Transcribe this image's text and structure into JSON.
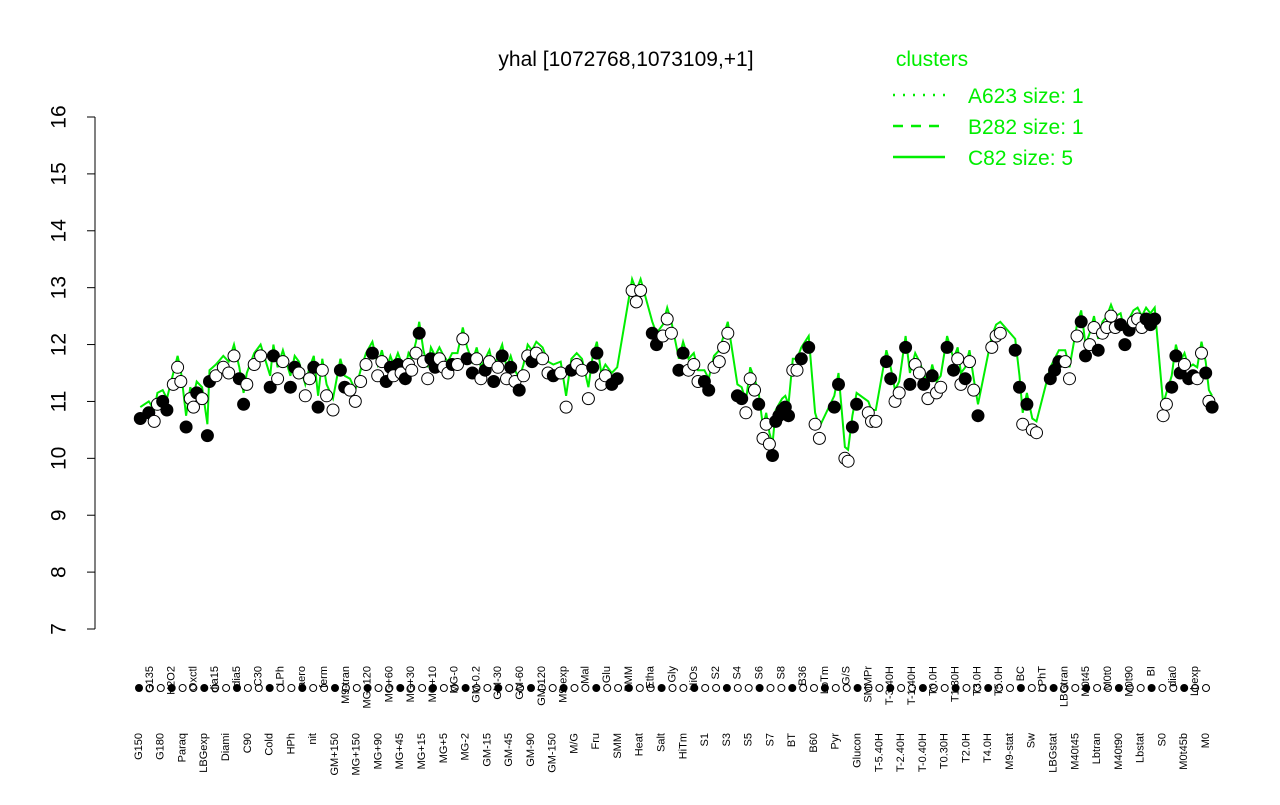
{
  "chart_data": {
    "type": "scatter",
    "title": "yhal [1072768,1073109,+1]",
    "xlabel": "",
    "ylabel": "",
    "ylim": [
      7,
      16
    ],
    "yticks": [
      7,
      8,
      9,
      10,
      11,
      12,
      13,
      14,
      15,
      16
    ],
    "legend": {
      "title": "clusters",
      "placement": "top-right",
      "color": "#00ee00",
      "entries": [
        {
          "label": "A623 size: 1",
          "line": "dotted"
        },
        {
          "label": "B282 size: 1",
          "line": "dashed"
        },
        {
          "label": "C82 size: 5",
          "line": "solid"
        }
      ]
    },
    "x_tick_labels": [
      "G150",
      "G135",
      "G180",
      "H2O2",
      "Paraq",
      "Oxctl",
      "LBGexp",
      "dia15",
      "Diami",
      "dia5",
      "C90",
      "C30",
      "Cold",
      "LPh",
      "HPh",
      "aero",
      "nit",
      "ferm",
      "GM+150",
      "M9-tran",
      "MG+150",
      "MG+120",
      "MG+90",
      "MG+60",
      "MG+45",
      "MG+30",
      "MG+15",
      "MG+10",
      "MG+5",
      "MG-0",
      "MG-2",
      "GM-0.2",
      "GM-15",
      "GM-30",
      "GM-45",
      "GM-60",
      "GM-90",
      "GM-120",
      "GM-150",
      "M9-exp",
      "M/G",
      "Mal",
      "Fru",
      "Glu",
      "SMM",
      "BMM",
      "Heat",
      "Etha",
      "Salt",
      "Gly",
      "HiTm",
      "HiOs",
      "S1",
      "S2",
      "S3",
      "S4",
      "S5",
      "S6",
      "S7",
      "S8",
      "BT",
      "B36",
      "B60",
      "LoTm",
      "Pyr",
      "G/S",
      "Glucon",
      "SMMPr",
      "T-5.40H",
      "T-3.40H",
      "T-2.40H",
      "T-1.40H",
      "T-0.40H",
      "T0.0H",
      "T0.30H",
      "T1.30H",
      "T2.0H",
      "T3.0H",
      "T4.0H",
      "T5.0H",
      "M9-stat",
      "BC",
      "Sw",
      "LPhT",
      "LBGstat",
      "LBGtran",
      "M40t45",
      "M0t45",
      "Lbtran",
      "M0t0",
      "M40t90",
      "M0t90",
      "Lbstat",
      "BI",
      "S0",
      "dia0",
      "M0t45b",
      "Lbexp",
      "M0"
    ],
    "points": [
      {
        "x": 0.5,
        "y": 10.7,
        "filled": true
      },
      {
        "x": 1.3,
        "y": 10.8,
        "filled": true
      },
      {
        "x": 1.8,
        "y": 10.65,
        "filled": false
      },
      {
        "x": 2.1,
        "y": 10.95,
        "filled": false
      },
      {
        "x": 2.6,
        "y": 11.0,
        "filled": true
      },
      {
        "x": 3.0,
        "y": 10.85,
        "filled": true
      },
      {
        "x": 3.6,
        "y": 11.3,
        "filled": false
      },
      {
        "x": 4.0,
        "y": 11.6,
        "filled": false
      },
      {
        "x": 4.3,
        "y": 11.35,
        "filled": false
      },
      {
        "x": 4.8,
        "y": 10.55,
        "filled": true
      },
      {
        "x": 5.2,
        "y": 11.05,
        "filled": false
      },
      {
        "x": 5.5,
        "y": 10.9,
        "filled": false
      },
      {
        "x": 5.8,
        "y": 11.15,
        "filled": true
      },
      {
        "x": 6.3,
        "y": 11.05,
        "filled": false
      },
      {
        "x": 6.8,
        "y": 10.4,
        "filled": true
      },
      {
        "x": 7.0,
        "y": 11.35,
        "filled": true
      },
      {
        "x": 7.6,
        "y": 11.45,
        "filled": false
      },
      {
        "x": 8.3,
        "y": 11.6,
        "filled": false
      },
      {
        "x": 8.8,
        "y": 11.5,
        "filled": false
      },
      {
        "x": 9.3,
        "y": 11.8,
        "filled": false
      },
      {
        "x": 9.8,
        "y": 11.4,
        "filled": true
      },
      {
        "x": 10.2,
        "y": 10.95,
        "filled": true
      },
      {
        "x": 10.5,
        "y": 11.3,
        "filled": false
      },
      {
        "x": 11.2,
        "y": 11.65,
        "filled": false
      },
      {
        "x": 11.8,
        "y": 11.8,
        "filled": false
      },
      {
        "x": 12.7,
        "y": 11.25,
        "filled": true
      },
      {
        "x": 13.0,
        "y": 11.8,
        "filled": true
      },
      {
        "x": 13.4,
        "y": 11.4,
        "filled": false
      },
      {
        "x": 13.9,
        "y": 11.7,
        "filled": false
      },
      {
        "x": 14.6,
        "y": 11.25,
        "filled": true
      },
      {
        "x": 15.0,
        "y": 11.6,
        "filled": true
      },
      {
        "x": 15.4,
        "y": 11.5,
        "filled": false
      },
      {
        "x": 16.0,
        "y": 11.1,
        "filled": false
      },
      {
        "x": 16.4,
        "y": 11.4,
        "filled": false
      },
      {
        "x": 16.8,
        "y": 11.6,
        "filled": true
      },
      {
        "x": 17.2,
        "y": 10.9,
        "filled": true
      },
      {
        "x": 17.6,
        "y": 11.55,
        "filled": false
      },
      {
        "x": 18.0,
        "y": 11.1,
        "filled": false
      },
      {
        "x": 18.6,
        "y": 10.85,
        "filled": false
      },
      {
        "x": 19.3,
        "y": 11.55,
        "filled": true
      },
      {
        "x": 19.7,
        "y": 11.25,
        "filled": true
      },
      {
        "x": 20.2,
        "y": 11.2,
        "filled": false
      },
      {
        "x": 20.7,
        "y": 11.0,
        "filled": false
      },
      {
        "x": 21.2,
        "y": 11.35,
        "filled": false
      },
      {
        "x": 21.7,
        "y": 11.65,
        "filled": false
      },
      {
        "x": 22.3,
        "y": 11.85,
        "filled": true
      },
      {
        "x": 22.8,
        "y": 11.45,
        "filled": false
      },
      {
        "x": 23.2,
        "y": 11.7,
        "filled": false
      },
      {
        "x": 23.6,
        "y": 11.35,
        "filled": true
      },
      {
        "x": 24.0,
        "y": 11.6,
        "filled": true
      },
      {
        "x": 24.3,
        "y": 11.45,
        "filled": false
      },
      {
        "x": 24.7,
        "y": 11.65,
        "filled": true
      },
      {
        "x": 25.0,
        "y": 11.5,
        "filled": false
      },
      {
        "x": 25.4,
        "y": 11.4,
        "filled": true
      },
      {
        "x": 25.7,
        "y": 11.65,
        "filled": false
      },
      {
        "x": 26.0,
        "y": 11.55,
        "filled": false
      },
      {
        "x": 26.4,
        "y": 11.85,
        "filled": false
      },
      {
        "x": 26.7,
        "y": 12.2,
        "filled": true
      },
      {
        "x": 27.1,
        "y": 11.7,
        "filled": false
      },
      {
        "x": 27.5,
        "y": 11.4,
        "filled": false
      },
      {
        "x": 27.8,
        "y": 11.75,
        "filled": true
      },
      {
        "x": 28.2,
        "y": 11.6,
        "filled": true
      },
      {
        "x": 28.6,
        "y": 11.75,
        "filled": false
      },
      {
        "x": 29.0,
        "y": 11.6,
        "filled": false
      },
      {
        "x": 29.4,
        "y": 11.5,
        "filled": false
      },
      {
        "x": 29.8,
        "y": 11.65,
        "filled": true
      },
      {
        "x": 30.3,
        "y": 11.65,
        "filled": false
      },
      {
        "x": 30.8,
        "y": 12.1,
        "filled": false
      },
      {
        "x": 31.2,
        "y": 11.75,
        "filled": true
      },
      {
        "x": 31.7,
        "y": 11.5,
        "filled": true
      },
      {
        "x": 32.1,
        "y": 11.75,
        "filled": false
      },
      {
        "x": 32.5,
        "y": 11.4,
        "filled": false
      },
      {
        "x": 32.9,
        "y": 11.55,
        "filled": true
      },
      {
        "x": 33.3,
        "y": 11.7,
        "filled": false
      },
      {
        "x": 33.7,
        "y": 11.35,
        "filled": true
      },
      {
        "x": 34.1,
        "y": 11.6,
        "filled": false
      },
      {
        "x": 34.5,
        "y": 11.8,
        "filled": true
      },
      {
        "x": 34.9,
        "y": 11.4,
        "filled": false
      },
      {
        "x": 35.3,
        "y": 11.6,
        "filled": true
      },
      {
        "x": 35.7,
        "y": 11.35,
        "filled": false
      },
      {
        "x": 36.1,
        "y": 11.2,
        "filled": true
      },
      {
        "x": 36.5,
        "y": 11.45,
        "filled": false
      },
      {
        "x": 36.9,
        "y": 11.8,
        "filled": false
      },
      {
        "x": 37.3,
        "y": 11.7,
        "filled": true
      },
      {
        "x": 37.7,
        "y": 11.85,
        "filled": false
      },
      {
        "x": 38.3,
        "y": 11.75,
        "filled": false
      },
      {
        "x": 38.8,
        "y": 11.5,
        "filled": false
      },
      {
        "x": 39.3,
        "y": 11.45,
        "filled": true
      },
      {
        "x": 40.0,
        "y": 11.5,
        "filled": false
      },
      {
        "x": 40.5,
        "y": 10.9,
        "filled": false
      },
      {
        "x": 41.0,
        "y": 11.55,
        "filled": true
      },
      {
        "x": 41.5,
        "y": 11.65,
        "filled": false
      },
      {
        "x": 42.0,
        "y": 11.55,
        "filled": false
      },
      {
        "x": 42.6,
        "y": 11.05,
        "filled": false
      },
      {
        "x": 43.0,
        "y": 11.6,
        "filled": true
      },
      {
        "x": 43.4,
        "y": 11.85,
        "filled": true
      },
      {
        "x": 43.8,
        "y": 11.3,
        "filled": false
      },
      {
        "x": 44.2,
        "y": 11.45,
        "filled": false
      },
      {
        "x": 44.8,
        "y": 11.3,
        "filled": true
      },
      {
        "x": 45.3,
        "y": 11.4,
        "filled": true
      },
      {
        "x": 46.7,
        "y": 12.95,
        "filled": false
      },
      {
        "x": 47.1,
        "y": 12.75,
        "filled": false
      },
      {
        "x": 47.5,
        "y": 12.95,
        "filled": false
      },
      {
        "x": 48.6,
        "y": 12.2,
        "filled": true
      },
      {
        "x": 49.0,
        "y": 12.0,
        "filled": true
      },
      {
        "x": 49.6,
        "y": 12.15,
        "filled": false
      },
      {
        "x": 50.0,
        "y": 12.45,
        "filled": false
      },
      {
        "x": 50.4,
        "y": 12.2,
        "filled": false
      },
      {
        "x": 51.1,
        "y": 11.55,
        "filled": true
      },
      {
        "x": 51.5,
        "y": 11.85,
        "filled": true
      },
      {
        "x": 52.0,
        "y": 11.55,
        "filled": false
      },
      {
        "x": 52.5,
        "y": 11.65,
        "filled": false
      },
      {
        "x": 52.9,
        "y": 11.35,
        "filled": false
      },
      {
        "x": 53.5,
        "y": 11.35,
        "filled": true
      },
      {
        "x": 53.9,
        "y": 11.2,
        "filled": true
      },
      {
        "x": 54.4,
        "y": 11.6,
        "filled": false
      },
      {
        "x": 54.9,
        "y": 11.7,
        "filled": false
      },
      {
        "x": 55.3,
        "y": 11.95,
        "filled": false
      },
      {
        "x": 55.7,
        "y": 12.2,
        "filled": false
      },
      {
        "x": 56.6,
        "y": 11.1,
        "filled": true
      },
      {
        "x": 57.0,
        "y": 11.05,
        "filled": true
      },
      {
        "x": 57.4,
        "y": 10.8,
        "filled": false
      },
      {
        "x": 57.8,
        "y": 11.4,
        "filled": false
      },
      {
        "x": 58.2,
        "y": 11.2,
        "filled": false
      },
      {
        "x": 58.6,
        "y": 10.95,
        "filled": true
      },
      {
        "x": 59.0,
        "y": 10.35,
        "filled": false
      },
      {
        "x": 59.3,
        "y": 10.6,
        "filled": false
      },
      {
        "x": 59.6,
        "y": 10.25,
        "filled": false
      },
      {
        "x": 59.9,
        "y": 10.05,
        "filled": true
      },
      {
        "x": 60.2,
        "y": 10.65,
        "filled": true
      },
      {
        "x": 60.5,
        "y": 10.75,
        "filled": true
      },
      {
        "x": 60.8,
        "y": 10.85,
        "filled": true
      },
      {
        "x": 61.1,
        "y": 10.9,
        "filled": true
      },
      {
        "x": 61.4,
        "y": 10.75,
        "filled": true
      },
      {
        "x": 61.8,
        "y": 11.55,
        "filled": false
      },
      {
        "x": 62.2,
        "y": 11.55,
        "filled": false
      },
      {
        "x": 62.6,
        "y": 11.75,
        "filled": true
      },
      {
        "x": 63.3,
        "y": 11.95,
        "filled": true
      },
      {
        "x": 63.9,
        "y": 10.6,
        "filled": false
      },
      {
        "x": 64.3,
        "y": 10.35,
        "filled": false
      },
      {
        "x": 65.7,
        "y": 10.9,
        "filled": true
      },
      {
        "x": 66.1,
        "y": 11.3,
        "filled": true
      },
      {
        "x": 66.7,
        "y": 10.0,
        "filled": false
      },
      {
        "x": 67.0,
        "y": 9.95,
        "filled": false
      },
      {
        "x": 67.4,
        "y": 10.55,
        "filled": true
      },
      {
        "x": 67.8,
        "y": 10.95,
        "filled": true
      },
      {
        "x": 68.9,
        "y": 10.8,
        "filled": false
      },
      {
        "x": 69.2,
        "y": 10.65,
        "filled": false
      },
      {
        "x": 69.6,
        "y": 10.65,
        "filled": false
      },
      {
        "x": 70.6,
        "y": 11.7,
        "filled": true
      },
      {
        "x": 71.0,
        "y": 11.4,
        "filled": true
      },
      {
        "x": 71.4,
        "y": 11.0,
        "filled": false
      },
      {
        "x": 71.8,
        "y": 11.15,
        "filled": false
      },
      {
        "x": 72.4,
        "y": 11.95,
        "filled": true
      },
      {
        "x": 72.8,
        "y": 11.3,
        "filled": true
      },
      {
        "x": 73.3,
        "y": 11.65,
        "filled": false
      },
      {
        "x": 73.7,
        "y": 11.5,
        "filled": false
      },
      {
        "x": 74.1,
        "y": 11.3,
        "filled": true
      },
      {
        "x": 74.5,
        "y": 11.05,
        "filled": false
      },
      {
        "x": 74.9,
        "y": 11.45,
        "filled": true
      },
      {
        "x": 75.3,
        "y": 11.15,
        "filled": false
      },
      {
        "x": 75.7,
        "y": 11.25,
        "filled": false
      },
      {
        "x": 76.3,
        "y": 11.95,
        "filled": true
      },
      {
        "x": 76.9,
        "y": 11.55,
        "filled": true
      },
      {
        "x": 77.3,
        "y": 11.75,
        "filled": false
      },
      {
        "x": 77.6,
        "y": 11.3,
        "filled": false
      },
      {
        "x": 78.0,
        "y": 11.4,
        "filled": true
      },
      {
        "x": 78.4,
        "y": 11.7,
        "filled": false
      },
      {
        "x": 78.8,
        "y": 11.2,
        "filled": false
      },
      {
        "x": 79.2,
        "y": 10.75,
        "filled": true
      },
      {
        "x": 80.5,
        "y": 11.95,
        "filled": false
      },
      {
        "x": 80.9,
        "y": 12.15,
        "filled": false
      },
      {
        "x": 81.3,
        "y": 12.2,
        "filled": false
      },
      {
        "x": 82.7,
        "y": 11.9,
        "filled": true
      },
      {
        "x": 83.1,
        "y": 11.25,
        "filled": true
      },
      {
        "x": 83.4,
        "y": 10.6,
        "filled": false
      },
      {
        "x": 83.8,
        "y": 10.95,
        "filled": true
      },
      {
        "x": 84.3,
        "y": 10.5,
        "filled": false
      },
      {
        "x": 84.7,
        "y": 10.45,
        "filled": false
      },
      {
        "x": 86.0,
        "y": 11.4,
        "filled": true
      },
      {
        "x": 86.4,
        "y": 11.55,
        "filled": true
      },
      {
        "x": 86.8,
        "y": 11.7,
        "filled": true
      },
      {
        "x": 87.4,
        "y": 11.7,
        "filled": false
      },
      {
        "x": 87.8,
        "y": 11.4,
        "filled": false
      },
      {
        "x": 88.5,
        "y": 12.15,
        "filled": false
      },
      {
        "x": 88.9,
        "y": 12.4,
        "filled": true
      },
      {
        "x": 89.3,
        "y": 11.8,
        "filled": true
      },
      {
        "x": 89.7,
        "y": 12.0,
        "filled": false
      },
      {
        "x": 90.1,
        "y": 12.3,
        "filled": false
      },
      {
        "x": 90.5,
        "y": 11.9,
        "filled": true
      },
      {
        "x": 90.9,
        "y": 12.2,
        "filled": false
      },
      {
        "x": 91.3,
        "y": 12.3,
        "filled": false
      },
      {
        "x": 91.7,
        "y": 12.5,
        "filled": false
      },
      {
        "x": 92.1,
        "y": 12.3,
        "filled": false
      },
      {
        "x": 92.6,
        "y": 12.35,
        "filled": true
      },
      {
        "x": 93.0,
        "y": 12.0,
        "filled": true
      },
      {
        "x": 93.4,
        "y": 12.25,
        "filled": true
      },
      {
        "x": 93.8,
        "y": 12.4,
        "filled": false
      },
      {
        "x": 94.2,
        "y": 12.45,
        "filled": false
      },
      {
        "x": 94.6,
        "y": 12.3,
        "filled": false
      },
      {
        "x": 95.0,
        "y": 12.45,
        "filled": true
      },
      {
        "x": 95.4,
        "y": 12.35,
        "filled": true
      },
      {
        "x": 95.8,
        "y": 12.45,
        "filled": true
      },
      {
        "x": 96.6,
        "y": 10.75,
        "filled": false
      },
      {
        "x": 96.9,
        "y": 10.95,
        "filled": false
      },
      {
        "x": 97.4,
        "y": 11.25,
        "filled": true
      },
      {
        "x": 97.8,
        "y": 11.8,
        "filled": true
      },
      {
        "x": 98.2,
        "y": 11.5,
        "filled": true
      },
      {
        "x": 98.6,
        "y": 11.65,
        "filled": false
      },
      {
        "x": 99.0,
        "y": 11.4,
        "filled": true
      },
      {
        "x": 99.4,
        "y": 11.45,
        "filled": true
      },
      {
        "x": 99.8,
        "y": 11.4,
        "filled": false
      },
      {
        "x": 100.2,
        "y": 11.85,
        "filled": false
      },
      {
        "x": 100.6,
        "y": 11.5,
        "filled": true
      },
      {
        "x": 100.9,
        "y": 11.0,
        "filled": false
      },
      {
        "x": 101.2,
        "y": 10.9,
        "filled": true
      }
    ]
  }
}
